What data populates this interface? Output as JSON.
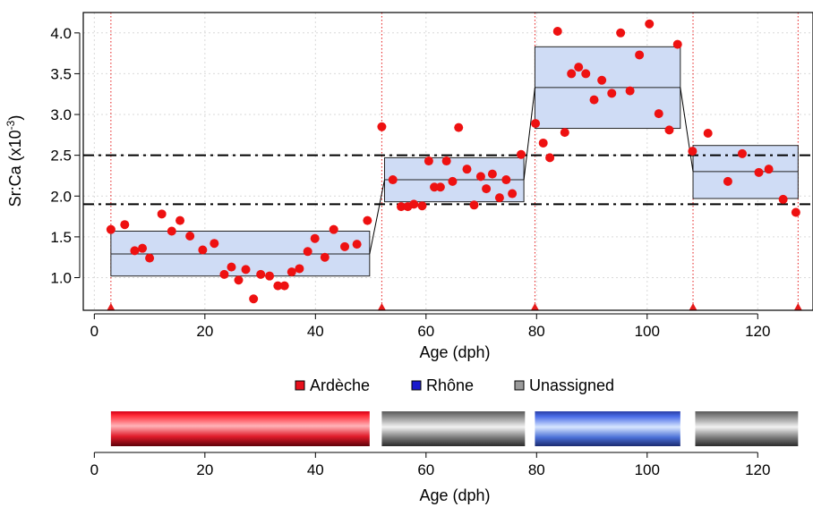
{
  "chart_data": [
    {
      "type": "scatter",
      "xlabel": "Age (dph)",
      "ylabel_main": "Sr:Ca (x10",
      "ylabel_exp": "-3",
      "ylabel_close": ")",
      "xlim": [
        -2,
        130
      ],
      "ylim": [
        0.6,
        4.25
      ],
      "xticks": [
        0,
        20,
        40,
        60,
        80,
        100,
        120
      ],
      "yticks": [
        1.0,
        1.5,
        2.0,
        2.5,
        3.0,
        3.5,
        4.0
      ],
      "ytick_labels": [
        "1.0",
        "1.5",
        "2.0",
        "2.5",
        "3.0",
        "3.5",
        "4.0"
      ],
      "grid": true,
      "thresholds": [
        1.9,
        2.5
      ],
      "breakpoints": [
        3,
        52,
        79.7,
        108.3,
        127.3
      ],
      "segments": [
        {
          "x0": 3,
          "x1": 49.8,
          "mean": 1.29,
          "low": 1.02,
          "high": 1.57
        },
        {
          "x0": 52.5,
          "x1": 77.7,
          "mean": 2.2,
          "low": 1.93,
          "high": 2.47
        },
        {
          "x0": 79.7,
          "x1": 106,
          "mean": 3.33,
          "low": 2.83,
          "high": 3.83
        },
        {
          "x0": 108.3,
          "x1": 127.3,
          "mean": 2.3,
          "low": 1.97,
          "high": 2.62
        }
      ],
      "points": [
        [
          3,
          1.59
        ],
        [
          5.5,
          1.65
        ],
        [
          7.3,
          1.33
        ],
        [
          8.7,
          1.36
        ],
        [
          10,
          1.24
        ],
        [
          12.2,
          1.78
        ],
        [
          14,
          1.57
        ],
        [
          15.5,
          1.7
        ],
        [
          17.3,
          1.51
        ],
        [
          19.6,
          1.34
        ],
        [
          21.7,
          1.42
        ],
        [
          23.5,
          1.04
        ],
        [
          24.8,
          1.13
        ],
        [
          26.1,
          0.97
        ],
        [
          27.4,
          1.1
        ],
        [
          28.8,
          0.74
        ],
        [
          30.1,
          1.04
        ],
        [
          31.7,
          1.02
        ],
        [
          33.2,
          0.9
        ],
        [
          34.4,
          0.9
        ],
        [
          35.7,
          1.07
        ],
        [
          37.1,
          1.11
        ],
        [
          38.6,
          1.32
        ],
        [
          39.9,
          1.48
        ],
        [
          41.7,
          1.25
        ],
        [
          43.3,
          1.59
        ],
        [
          45.3,
          1.38
        ],
        [
          47.5,
          1.41
        ],
        [
          49.4,
          1.7
        ],
        [
          52,
          2.85
        ],
        [
          54,
          2.2
        ],
        [
          55.5,
          1.87
        ],
        [
          56.7,
          1.87
        ],
        [
          57.8,
          1.9
        ],
        [
          59.3,
          1.88
        ],
        [
          60.5,
          2.43
        ],
        [
          61.5,
          2.11
        ],
        [
          62.6,
          2.11
        ],
        [
          63.7,
          2.43
        ],
        [
          64.8,
          2.18
        ],
        [
          65.9,
          2.84
        ],
        [
          67.4,
          2.33
        ],
        [
          68.7,
          1.89
        ],
        [
          69.9,
          2.24
        ],
        [
          70.9,
          2.09
        ],
        [
          72,
          2.27
        ],
        [
          73.3,
          1.98
        ],
        [
          74.5,
          2.2
        ],
        [
          75.6,
          2.03
        ],
        [
          77.2,
          2.51
        ],
        [
          79.8,
          2.89
        ],
        [
          81.2,
          2.65
        ],
        [
          82.4,
          2.47
        ],
        [
          83.8,
          4.02
        ],
        [
          85.1,
          2.78
        ],
        [
          86.3,
          3.5
        ],
        [
          87.6,
          3.58
        ],
        [
          88.9,
          3.5
        ],
        [
          90.4,
          3.18
        ],
        [
          91.8,
          3.42
        ],
        [
          93.6,
          3.26
        ],
        [
          95.2,
          4.0
        ],
        [
          96.9,
          3.29
        ],
        [
          98.6,
          3.73
        ],
        [
          100.4,
          4.11
        ],
        [
          102.1,
          3.01
        ],
        [
          104,
          2.81
        ],
        [
          105.5,
          3.86
        ],
        [
          108.2,
          2.55
        ],
        [
          111,
          2.77
        ],
        [
          114.6,
          2.18
        ],
        [
          117.2,
          2.52
        ],
        [
          120.2,
          2.29
        ],
        [
          122,
          2.33
        ],
        [
          124.6,
          1.96
        ],
        [
          126.9,
          1.8
        ]
      ]
    },
    {
      "type": "bar",
      "xlabel": "Age (dph)",
      "xlim": [
        -2,
        130
      ],
      "xticks": [
        0,
        20,
        40,
        60,
        80,
        100,
        120
      ],
      "legend": [
        {
          "name": "Ardèche",
          "color": "#e8101c"
        },
        {
          "name": "Rhône",
          "color": "#1a1acc"
        },
        {
          "name": "Unassigned",
          "color": "#9a9a9a"
        }
      ],
      "bars": [
        {
          "x0": 3,
          "x1": 49.8,
          "group": "Ardèche"
        },
        {
          "x0": 52,
          "x1": 77.9,
          "group": "Unassigned"
        },
        {
          "x0": 79.7,
          "x1": 106,
          "group": "Rhône"
        },
        {
          "x0": 108.7,
          "x1": 127.3,
          "group": "Unassigned"
        }
      ]
    }
  ],
  "colors": {
    "points": "#ee1111",
    "box_fill": "#cfdcf5",
    "box_stroke": "#222222",
    "threshold": "#000000",
    "breakpoint": "#e61a1a",
    "grid": "#d9d9d9"
  }
}
